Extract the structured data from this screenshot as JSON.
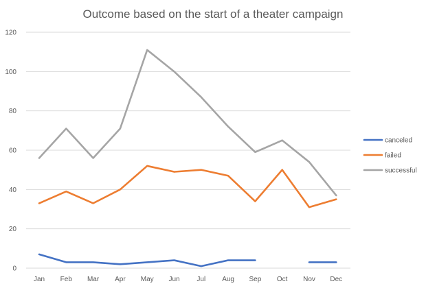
{
  "chart_data": {
    "type": "line",
    "title": "Outcome based on the start of a theater campaign",
    "xlabel": "",
    "ylabel": "",
    "categories": [
      "Jan",
      "Feb",
      "Mar",
      "Apr",
      "May",
      "Jun",
      "Jul",
      "Aug",
      "Sep",
      "Oct",
      "Nov",
      "Dec"
    ],
    "ylim": [
      0,
      120
    ],
    "yticks": [
      0,
      20,
      40,
      60,
      80,
      100,
      120
    ],
    "grid": true,
    "legend": "right",
    "series": [
      {
        "name": "canceled",
        "color": "#4472c4",
        "values": [
          7,
          3,
          3,
          2,
          3,
          4,
          1,
          4,
          4,
          null,
          3,
          3
        ]
      },
      {
        "name": "failed",
        "color": "#ed7d31",
        "values": [
          33,
          39,
          33,
          40,
          52,
          49,
          50,
          47,
          34,
          50,
          31,
          35
        ]
      },
      {
        "name": "successful",
        "color": "#a5a5a5",
        "values": [
          56,
          71,
          56,
          71,
          111,
          100,
          87,
          72,
          59,
          65,
          54,
          37
        ]
      }
    ]
  }
}
